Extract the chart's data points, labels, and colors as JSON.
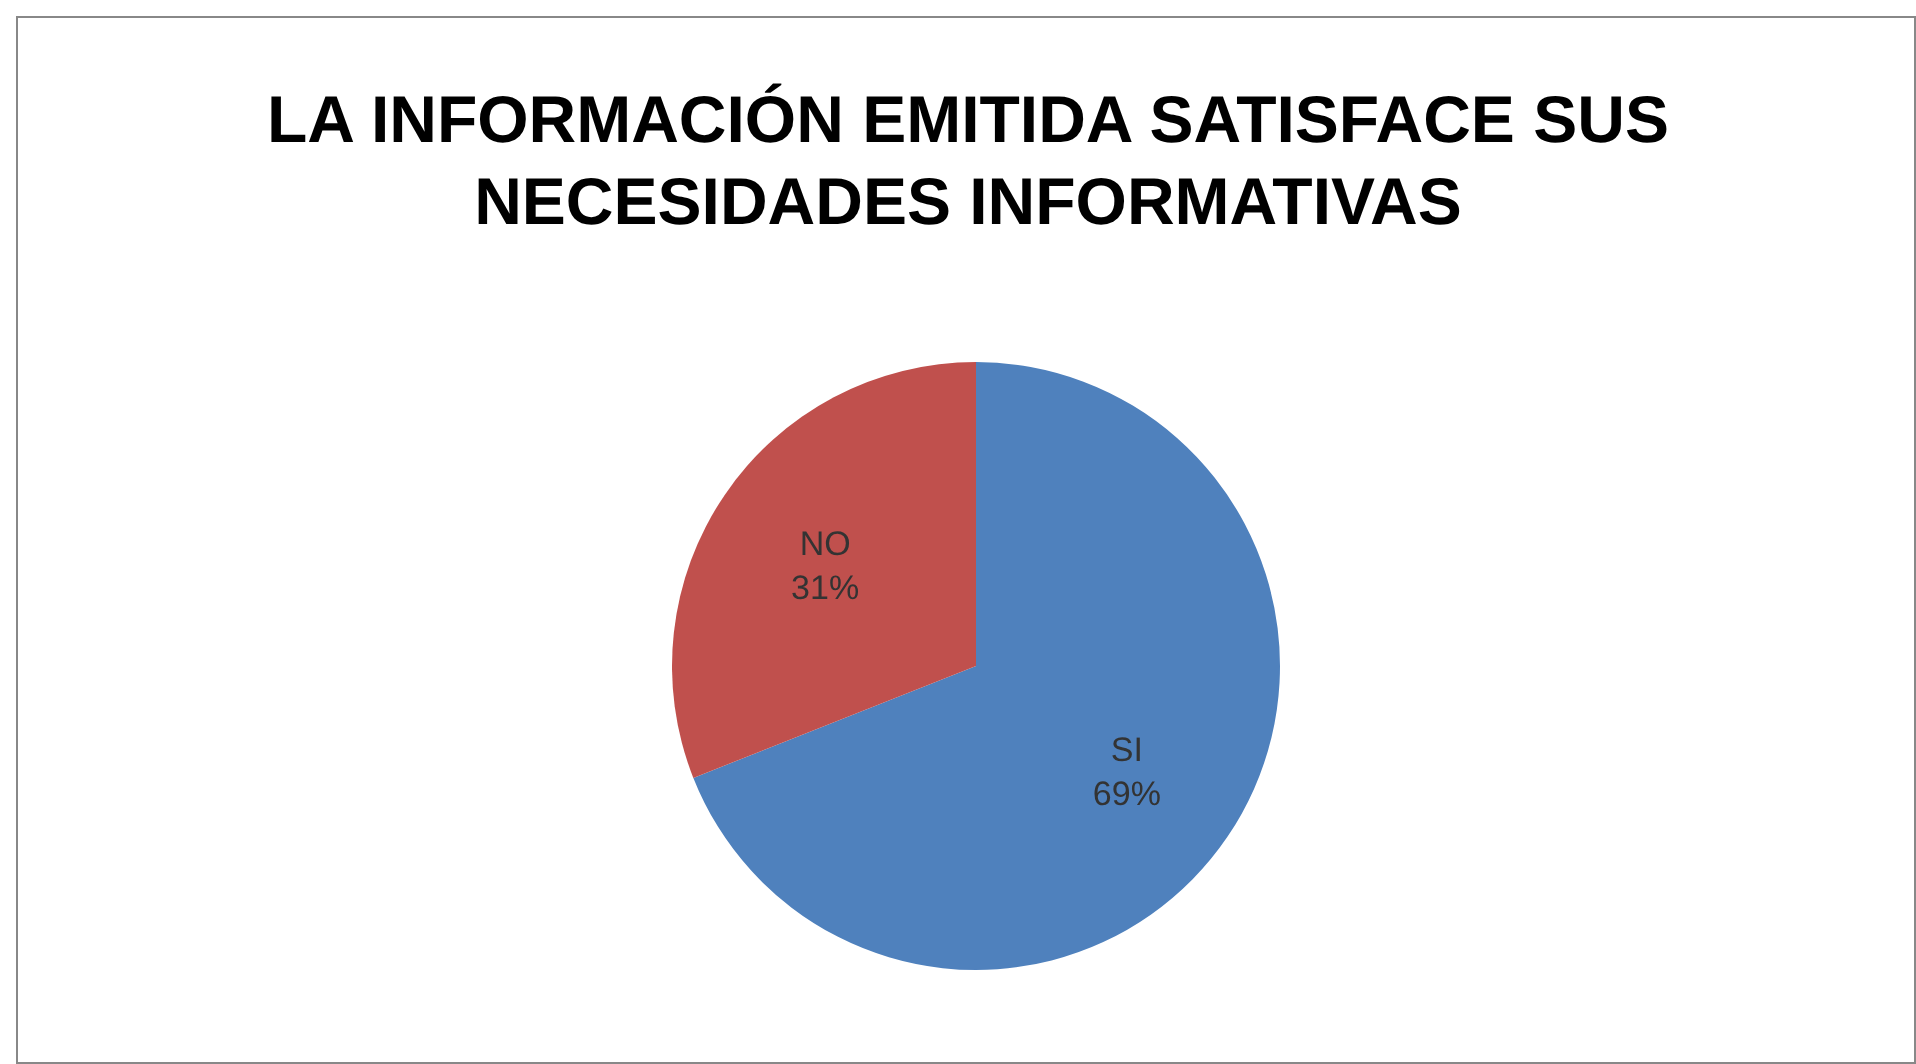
{
  "chart_data": {
    "type": "pie",
    "title": "LA INFORMACIÓN EMITIDA SATISFACE SUS NECESIDADES INFORMATIVAS",
    "categories": [
      "SI",
      "NO"
    ],
    "values": [
      69,
      31
    ],
    "colors": [
      "#4f81bd",
      "#c0504d"
    ],
    "value_labels": [
      "69%",
      "31%"
    ]
  }
}
